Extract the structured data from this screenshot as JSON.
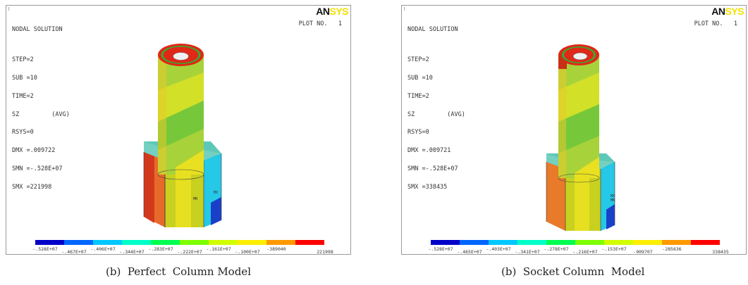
{
  "figures": [
    {
      "id": "a",
      "logo": {
        "part1": "AN",
        "part2": "SYS"
      },
      "plot_no": "PLOT NO.   1",
      "info": [
        "NODAL SOLUTION",
        "",
        "STEP=2",
        "SUB =10",
        "TIME=2",
        "SZ         (AVG)",
        "RSYS=0",
        "DMX =.009722",
        "SMN =-.528E+07",
        "SMX =221998"
      ],
      "labels_lower": [
        "-.528E+07",
        "-.406E+07",
        "-.283E+07",
        "-.161E+07",
        "-389040"
      ],
      "labels_upper": [
        "-.467E+07",
        "-.344E+07",
        "-.222E+07",
        "-.100E+07",
        "221998"
      ],
      "mx_label": "MX",
      "mn_label": "MN",
      "caption": "(b)  Perfect  Column Model"
    },
    {
      "id": "b",
      "logo": {
        "part1": "AN",
        "part2": "SYS"
      },
      "plot_no": "PLOT NO.   1",
      "info": [
        "NODAL SOLUTION",
        "",
        "STEP=2",
        "SUB =10",
        "TIME=2",
        "SZ         (AVG)",
        "RSYS=0",
        "DMX =.009721",
        "SMN =-.528E+07",
        "SMX =338435"
      ],
      "labels_lower": [
        "-.528E+07",
        "-.403E+07",
        "-.278E+07",
        "-.153E+07",
        "-285636"
      ],
      "labels_upper": [
        "-.465E+07",
        "-.341E+07",
        "-.216E+07",
        "-909707",
        "338435"
      ],
      "mx_label": "MX",
      "mn_label": "MN",
      "caption": "(b)  Socket Column  Model"
    }
  ],
  "legend_colors": [
    "#0000c8",
    "#0066ff",
    "#00c8ff",
    "#00ffc8",
    "#00ff50",
    "#7dff00",
    "#d2ff00",
    "#ffee00",
    "#ff9900",
    "#ff0000"
  ]
}
